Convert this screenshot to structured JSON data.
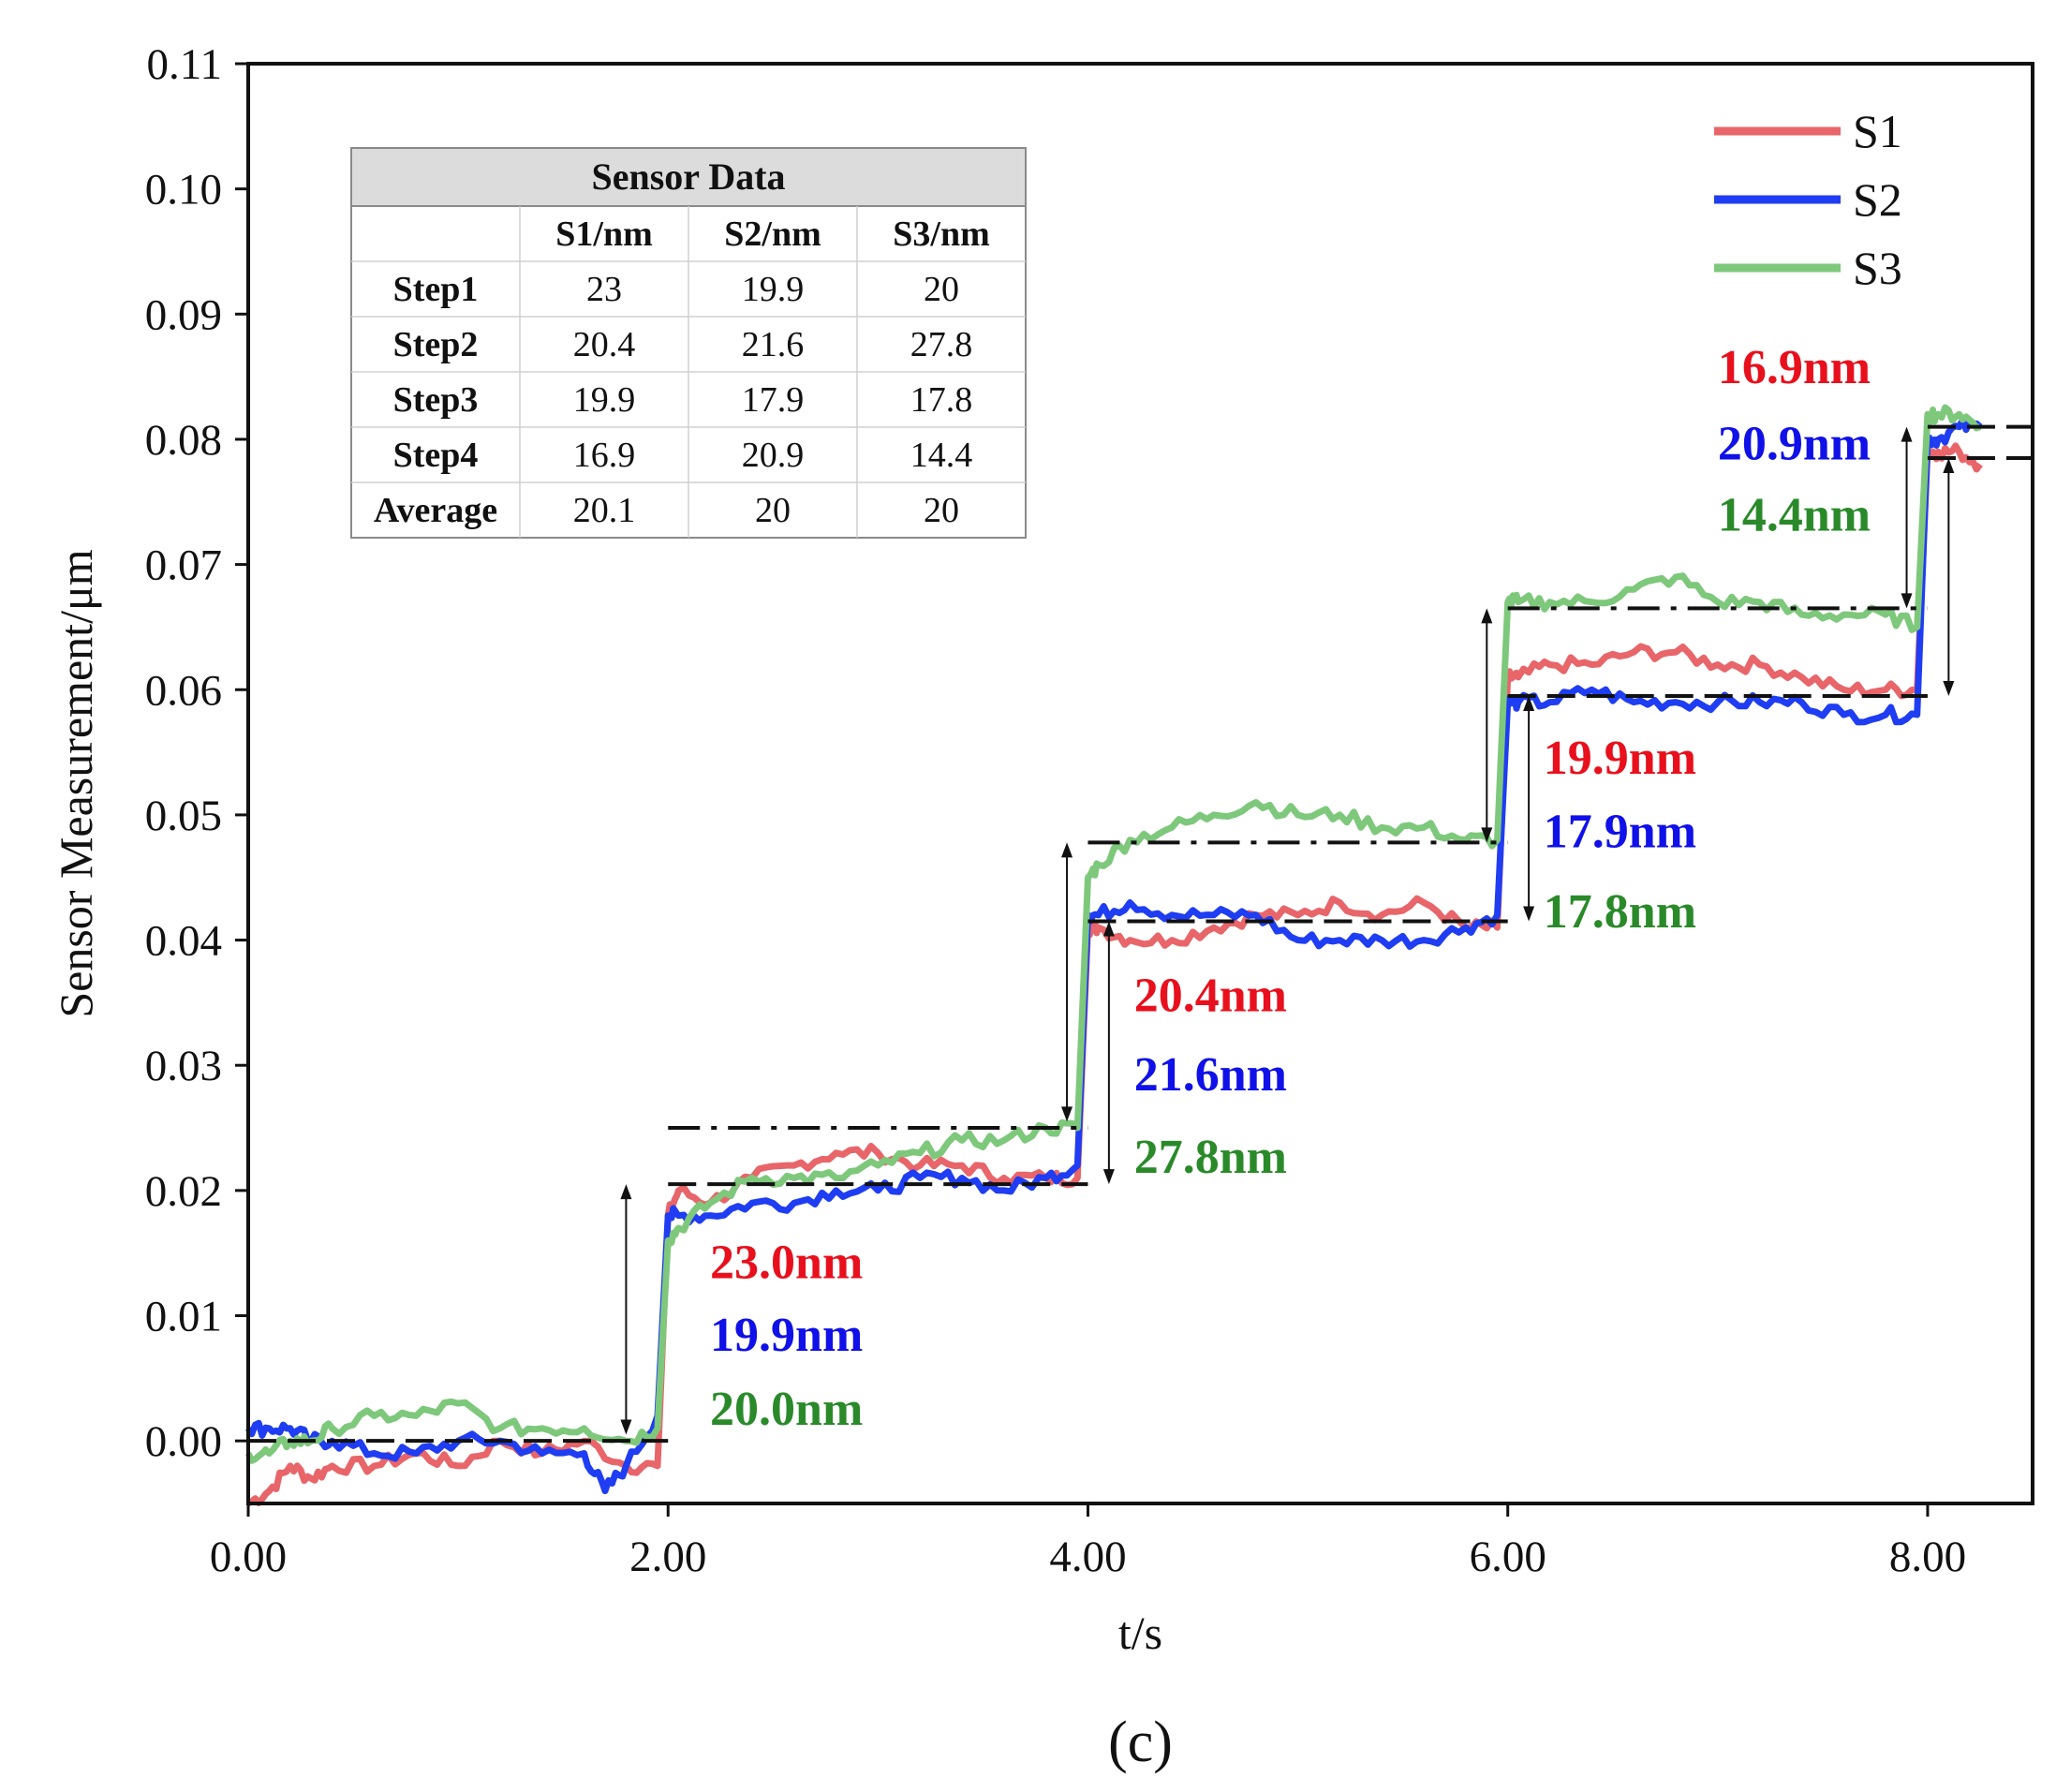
{
  "chart_data": {
    "type": "line",
    "panel_label": "(c)",
    "xlabel": "t/s",
    "ylabel": "Sensor Measurement/μm",
    "xlim": [
      0,
      8.5
    ],
    "ylim": [
      -0.005,
      0.11
    ],
    "x_ticks": [
      0,
      2,
      4,
      6,
      8
    ],
    "x_tick_labels": [
      "0.00",
      "2.00",
      "4.00",
      "6.00",
      "8.00"
    ],
    "y_ticks": [
      0,
      0.01,
      0.02,
      0.03,
      0.04,
      0.05,
      0.06,
      0.07,
      0.08,
      0.09,
      0.1,
      0.11
    ],
    "y_tick_labels": [
      "0.00",
      "0.01",
      "0.02",
      "0.03",
      "0.04",
      "0.05",
      "0.06",
      "0.07",
      "0.08",
      "0.09",
      "0.10",
      "0.11"
    ],
    "legend_position": "top-right",
    "series": [
      {
        "name": "S1",
        "color": "#e8656a",
        "x": [
          0,
          0.1,
          0.2,
          0.3,
          0.4,
          0.6,
          0.8,
          1.0,
          1.2,
          1.4,
          1.6,
          1.8,
          1.95,
          2.0,
          2.05,
          2.2,
          2.4,
          2.6,
          2.8,
          3.0,
          3.2,
          3.4,
          3.6,
          3.8,
          3.95,
          4.0,
          4.05,
          4.2,
          4.4,
          4.6,
          4.8,
          5.0,
          5.2,
          5.4,
          5.6,
          5.8,
          5.95,
          6.0,
          6.05,
          6.2,
          6.4,
          6.6,
          6.8,
          7.0,
          7.2,
          7.4,
          7.6,
          7.8,
          7.95,
          8.0,
          8.05,
          8.15,
          8.25
        ],
        "y": [
          -0.005,
          -0.004,
          -0.002,
          -0.003,
          -0.002,
          -0.002,
          -0.001,
          -0.002,
          0.0,
          -0.001,
          0.0,
          -0.002,
          -0.002,
          0.018,
          0.02,
          0.019,
          0.021,
          0.022,
          0.023,
          0.023,
          0.022,
          0.022,
          0.021,
          0.021,
          0.021,
          0.041,
          0.041,
          0.04,
          0.04,
          0.041,
          0.042,
          0.042,
          0.043,
          0.042,
          0.043,
          0.041,
          0.041,
          0.061,
          0.061,
          0.062,
          0.062,
          0.063,
          0.063,
          0.062,
          0.062,
          0.061,
          0.06,
          0.06,
          0.06,
          0.079,
          0.079,
          0.079,
          0.078
        ]
      },
      {
        "name": "S2",
        "color": "#1f3df2",
        "x": [
          0,
          0.1,
          0.2,
          0.3,
          0.4,
          0.6,
          0.8,
          1.0,
          1.2,
          1.4,
          1.6,
          1.7,
          1.8,
          1.95,
          2.0,
          2.05,
          2.2,
          2.4,
          2.6,
          2.8,
          3.0,
          3.2,
          3.4,
          3.6,
          3.8,
          3.95,
          4.0,
          4.05,
          4.2,
          4.4,
          4.6,
          4.8,
          5.0,
          5.2,
          5.4,
          5.6,
          5.8,
          5.95,
          6.0,
          6.05,
          6.2,
          6.4,
          6.6,
          6.8,
          7.0,
          7.2,
          7.4,
          7.6,
          7.8,
          7.95,
          8.0,
          8.05,
          8.15,
          8.25
        ],
        "y": [
          0.001,
          0.001,
          0.001,
          0.0,
          0.0,
          -0.001,
          -0.001,
          0.0,
          0.0,
          -0.001,
          -0.001,
          -0.004,
          -0.002,
          0.002,
          0.018,
          0.018,
          0.018,
          0.019,
          0.019,
          0.02,
          0.02,
          0.021,
          0.021,
          0.02,
          0.021,
          0.022,
          0.042,
          0.042,
          0.043,
          0.042,
          0.042,
          0.042,
          0.04,
          0.04,
          0.04,
          0.04,
          0.041,
          0.042,
          0.059,
          0.059,
          0.059,
          0.06,
          0.059,
          0.059,
          0.059,
          0.059,
          0.059,
          0.058,
          0.058,
          0.058,
          0.08,
          0.08,
          0.081,
          0.081
        ]
      },
      {
        "name": "S3",
        "color": "#7ec87c",
        "x": [
          0,
          0.1,
          0.2,
          0.3,
          0.4,
          0.6,
          0.8,
          1.0,
          1.2,
          1.4,
          1.6,
          1.8,
          1.95,
          2.0,
          2.05,
          2.2,
          2.4,
          2.6,
          2.8,
          3.0,
          3.2,
          3.4,
          3.6,
          3.8,
          3.95,
          4.0,
          4.05,
          4.2,
          4.4,
          4.6,
          4.8,
          5.0,
          5.2,
          5.4,
          5.6,
          5.8,
          5.95,
          6.0,
          6.05,
          6.2,
          6.4,
          6.6,
          6.8,
          7.0,
          7.2,
          7.4,
          7.6,
          7.8,
          7.95,
          8.0,
          8.05,
          8.15,
          8.25
        ],
        "y": [
          -0.001,
          -0.001,
          0.0,
          0.0,
          0.001,
          0.002,
          0.002,
          0.003,
          0.001,
          0.001,
          0.001,
          0.0,
          0.001,
          0.016,
          0.017,
          0.019,
          0.021,
          0.021,
          0.021,
          0.022,
          0.023,
          0.024,
          0.024,
          0.025,
          0.025,
          0.045,
          0.046,
          0.048,
          0.049,
          0.05,
          0.051,
          0.05,
          0.05,
          0.049,
          0.049,
          0.048,
          0.048,
          0.067,
          0.067,
          0.067,
          0.067,
          0.068,
          0.069,
          0.067,
          0.067,
          0.066,
          0.066,
          0.066,
          0.065,
          0.082,
          0.082,
          0.082,
          0.081
        ]
      }
    ],
    "reference_lines": [
      {
        "style": "dash",
        "x": [
          0,
          2.0
        ],
        "y": 0.0
      },
      {
        "style": "dash",
        "x": [
          2.0,
          4.0
        ],
        "y": 0.0205
      },
      {
        "style": "dashdot",
        "x": [
          2.0,
          4.0
        ],
        "y": 0.025
      },
      {
        "style": "dash",
        "x": [
          4.0,
          6.0
        ],
        "y": 0.0415
      },
      {
        "style": "dashdot",
        "x": [
          4.0,
          6.0
        ],
        "y": 0.0478
      },
      {
        "style": "dash",
        "x": [
          6.0,
          8.0
        ],
        "y": 0.0595
      },
      {
        "style": "dashdot",
        "x": [
          6.0,
          8.0
        ],
        "y": 0.0665
      },
      {
        "style": "dash",
        "x": [
          8.0,
          8.5
        ],
        "y": 0.0785
      },
      {
        "style": "dash",
        "x": [
          8.0,
          8.5
        ],
        "y": 0.081
      }
    ],
    "arrows": [
      {
        "x": 1.8,
        "y1": 0.0005,
        "y2": 0.0205
      },
      {
        "x": 3.9,
        "y1": 0.0255,
        "y2": 0.0478
      },
      {
        "x": 4.1,
        "y1": 0.0205,
        "y2": 0.0415
      },
      {
        "x": 5.9,
        "y1": 0.0478,
        "y2": 0.0665
      },
      {
        "x": 6.1,
        "y1": 0.0415,
        "y2": 0.0595
      },
      {
        "x": 7.9,
        "y1": 0.0665,
        "y2": 0.081
      },
      {
        "x": 8.1,
        "y1": 0.0595,
        "y2": 0.0785
      }
    ],
    "annotations": [
      {
        "text": "23.0nm",
        "color": "#e8101c",
        "x": 2.2,
        "y": 0.013
      },
      {
        "text": "19.9nm",
        "color": "#1010e8",
        "x": 2.2,
        "y": 0.0072
      },
      {
        "text": "20.0nm",
        "color": "#2a8a2a",
        "x": 2.2,
        "y": 0.0013
      },
      {
        "text": "20.4nm",
        "color": "#e8101c",
        "x": 4.22,
        "y": 0.0343
      },
      {
        "text": "21.6nm",
        "color": "#1010e8",
        "x": 4.22,
        "y": 0.028
      },
      {
        "text": "27.8nm",
        "color": "#2a8a2a",
        "x": 4.22,
        "y": 0.0214
      },
      {
        "text": "19.9nm",
        "color": "#e8101c",
        "x": 6.17,
        "y": 0.0533
      },
      {
        "text": "17.9nm",
        "color": "#1010e8",
        "x": 6.17,
        "y": 0.0474
      },
      {
        "text": "17.8nm",
        "color": "#2a8a2a",
        "x": 6.17,
        "y": 0.041
      },
      {
        "text": "16.9nm",
        "color": "#e8101c",
        "x": 7.0,
        "y": 0.0845
      },
      {
        "text": "20.9nm",
        "color": "#1010e8",
        "x": 7.0,
        "y": 0.0784
      },
      {
        "text": "14.4nm",
        "color": "#2a8a2a",
        "x": 7.0,
        "y": 0.0727
      }
    ],
    "table": {
      "title": "Sensor Data",
      "columns": [
        "",
        "S1/nm",
        "S2/nm",
        "S3/nm"
      ],
      "rows": [
        [
          "Step1",
          "23",
          "19.9",
          "20"
        ],
        [
          "Step2",
          "20.4",
          "21.6",
          "27.8"
        ],
        [
          "Step3",
          "19.9",
          "17.9",
          "17.8"
        ],
        [
          "Step4",
          "16.9",
          "20.9",
          "14.4"
        ],
        [
          "Average",
          "20.1",
          "20",
          "20"
        ]
      ]
    }
  }
}
